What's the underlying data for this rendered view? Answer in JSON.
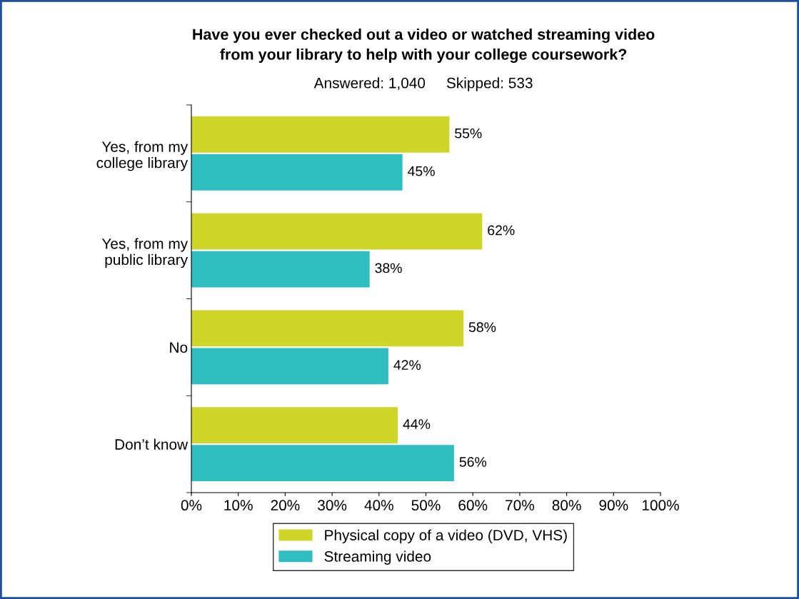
{
  "chart_data": {
    "type": "bar",
    "orientation": "horizontal",
    "title": "Have you ever checked out a video or watched streaming video\nfrom your library to help with your college coursework?",
    "subtitle": "Answered: 1,040     Skipped: 533",
    "categories": [
      "Yes, from my\ncollege library",
      "Yes, from my\npublic library",
      "No",
      "Don’t know"
    ],
    "series": [
      {
        "name": "Physical copy of a video (DVD, VHS)",
        "color": "#cdd629",
        "values": [
          55,
          62,
          58,
          44
        ],
        "value_labels": [
          "55%",
          "62%",
          "58%",
          "44%"
        ]
      },
      {
        "name": "Streaming video",
        "color": "#30bdbf",
        "values": [
          45,
          38,
          42,
          56
        ],
        "value_labels": [
          "45%",
          "38%",
          "42%",
          "56%"
        ]
      }
    ],
    "xlim": [
      0,
      100
    ],
    "xticks": [
      {
        "value": 0,
        "label": "0%"
      },
      {
        "value": 10,
        "label": "10%"
      },
      {
        "value": 20,
        "label": "20%"
      },
      {
        "value": 30,
        "label": "30%"
      },
      {
        "value": 40,
        "label": "40%"
      },
      {
        "value": 50,
        "label": "50%"
      },
      {
        "value": 60,
        "label": "60%"
      },
      {
        "value": 70,
        "label": "70%"
      },
      {
        "value": 80,
        "label": "80%"
      },
      {
        "value": 90,
        "label": "90%"
      },
      {
        "value": 100,
        "label": "100%"
      }
    ],
    "legend": "bottom",
    "grid": false
  }
}
